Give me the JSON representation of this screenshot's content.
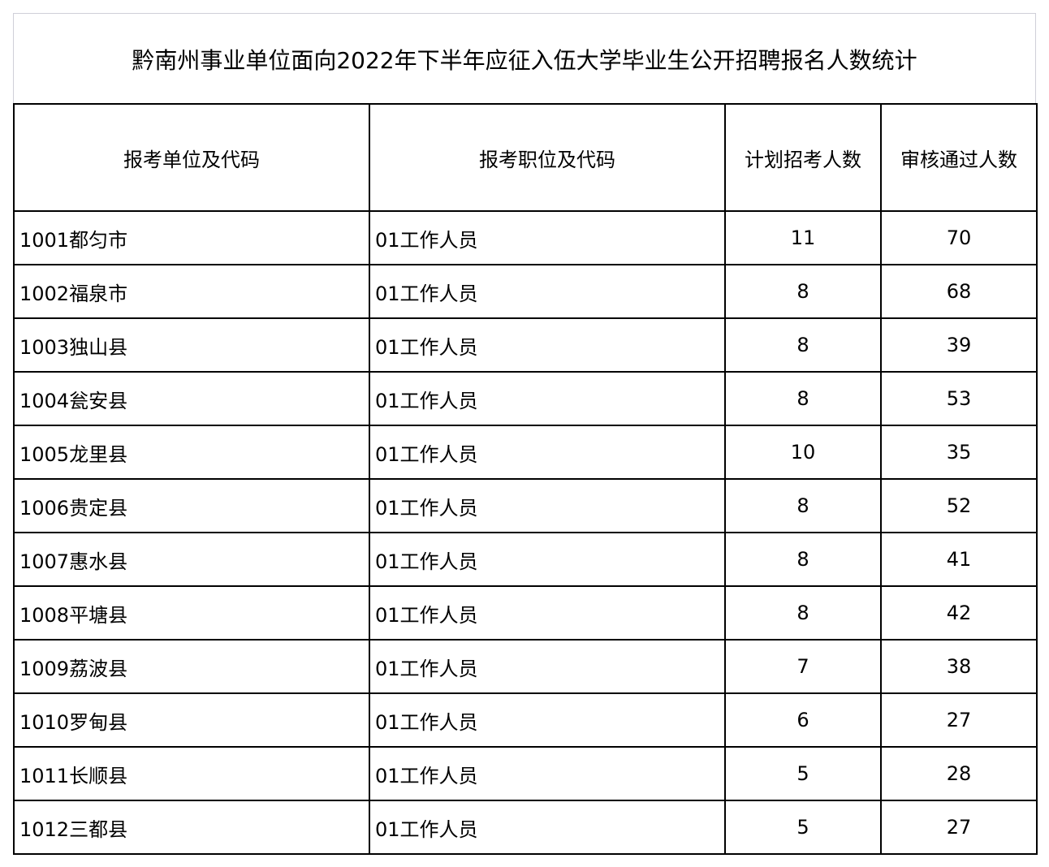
{
  "title": "黔南州事业单位面向2022年下半年应征入伍大学毕业生公开招聘报名人数统计",
  "headers": [
    "报考单位及代码",
    "报考职位及代码",
    "计划招考人数",
    "审核通过人数"
  ],
  "rows": [
    [
      "1001都匀市",
      "01工作人员",
      "11",
      "70"
    ],
    [
      "1002福泉市",
      "01工作人员",
      "8",
      "68"
    ],
    [
      "1003独山县",
      "01工作人员",
      "8",
      "39"
    ],
    [
      "1004瓮安县",
      "01工作人员",
      "8",
      "53"
    ],
    [
      "1005龙里县",
      "01工作人员",
      "10",
      "35"
    ],
    [
      "1006贵定县",
      "01工作人员",
      "8",
      "52"
    ],
    [
      "1007惠水县",
      "01工作人员",
      "8",
      "41"
    ],
    [
      "1008平塘县",
      "01工作人员",
      "8",
      "42"
    ],
    [
      "1009荔波县",
      "01工作人员",
      "7",
      "38"
    ],
    [
      "1010罗甸县",
      "01工作人员",
      "6",
      "27"
    ],
    [
      "1011长顺县",
      "01工作人员",
      "5",
      "28"
    ],
    [
      "1012三都县",
      "01工作人员",
      "5",
      "27"
    ]
  ]
}
